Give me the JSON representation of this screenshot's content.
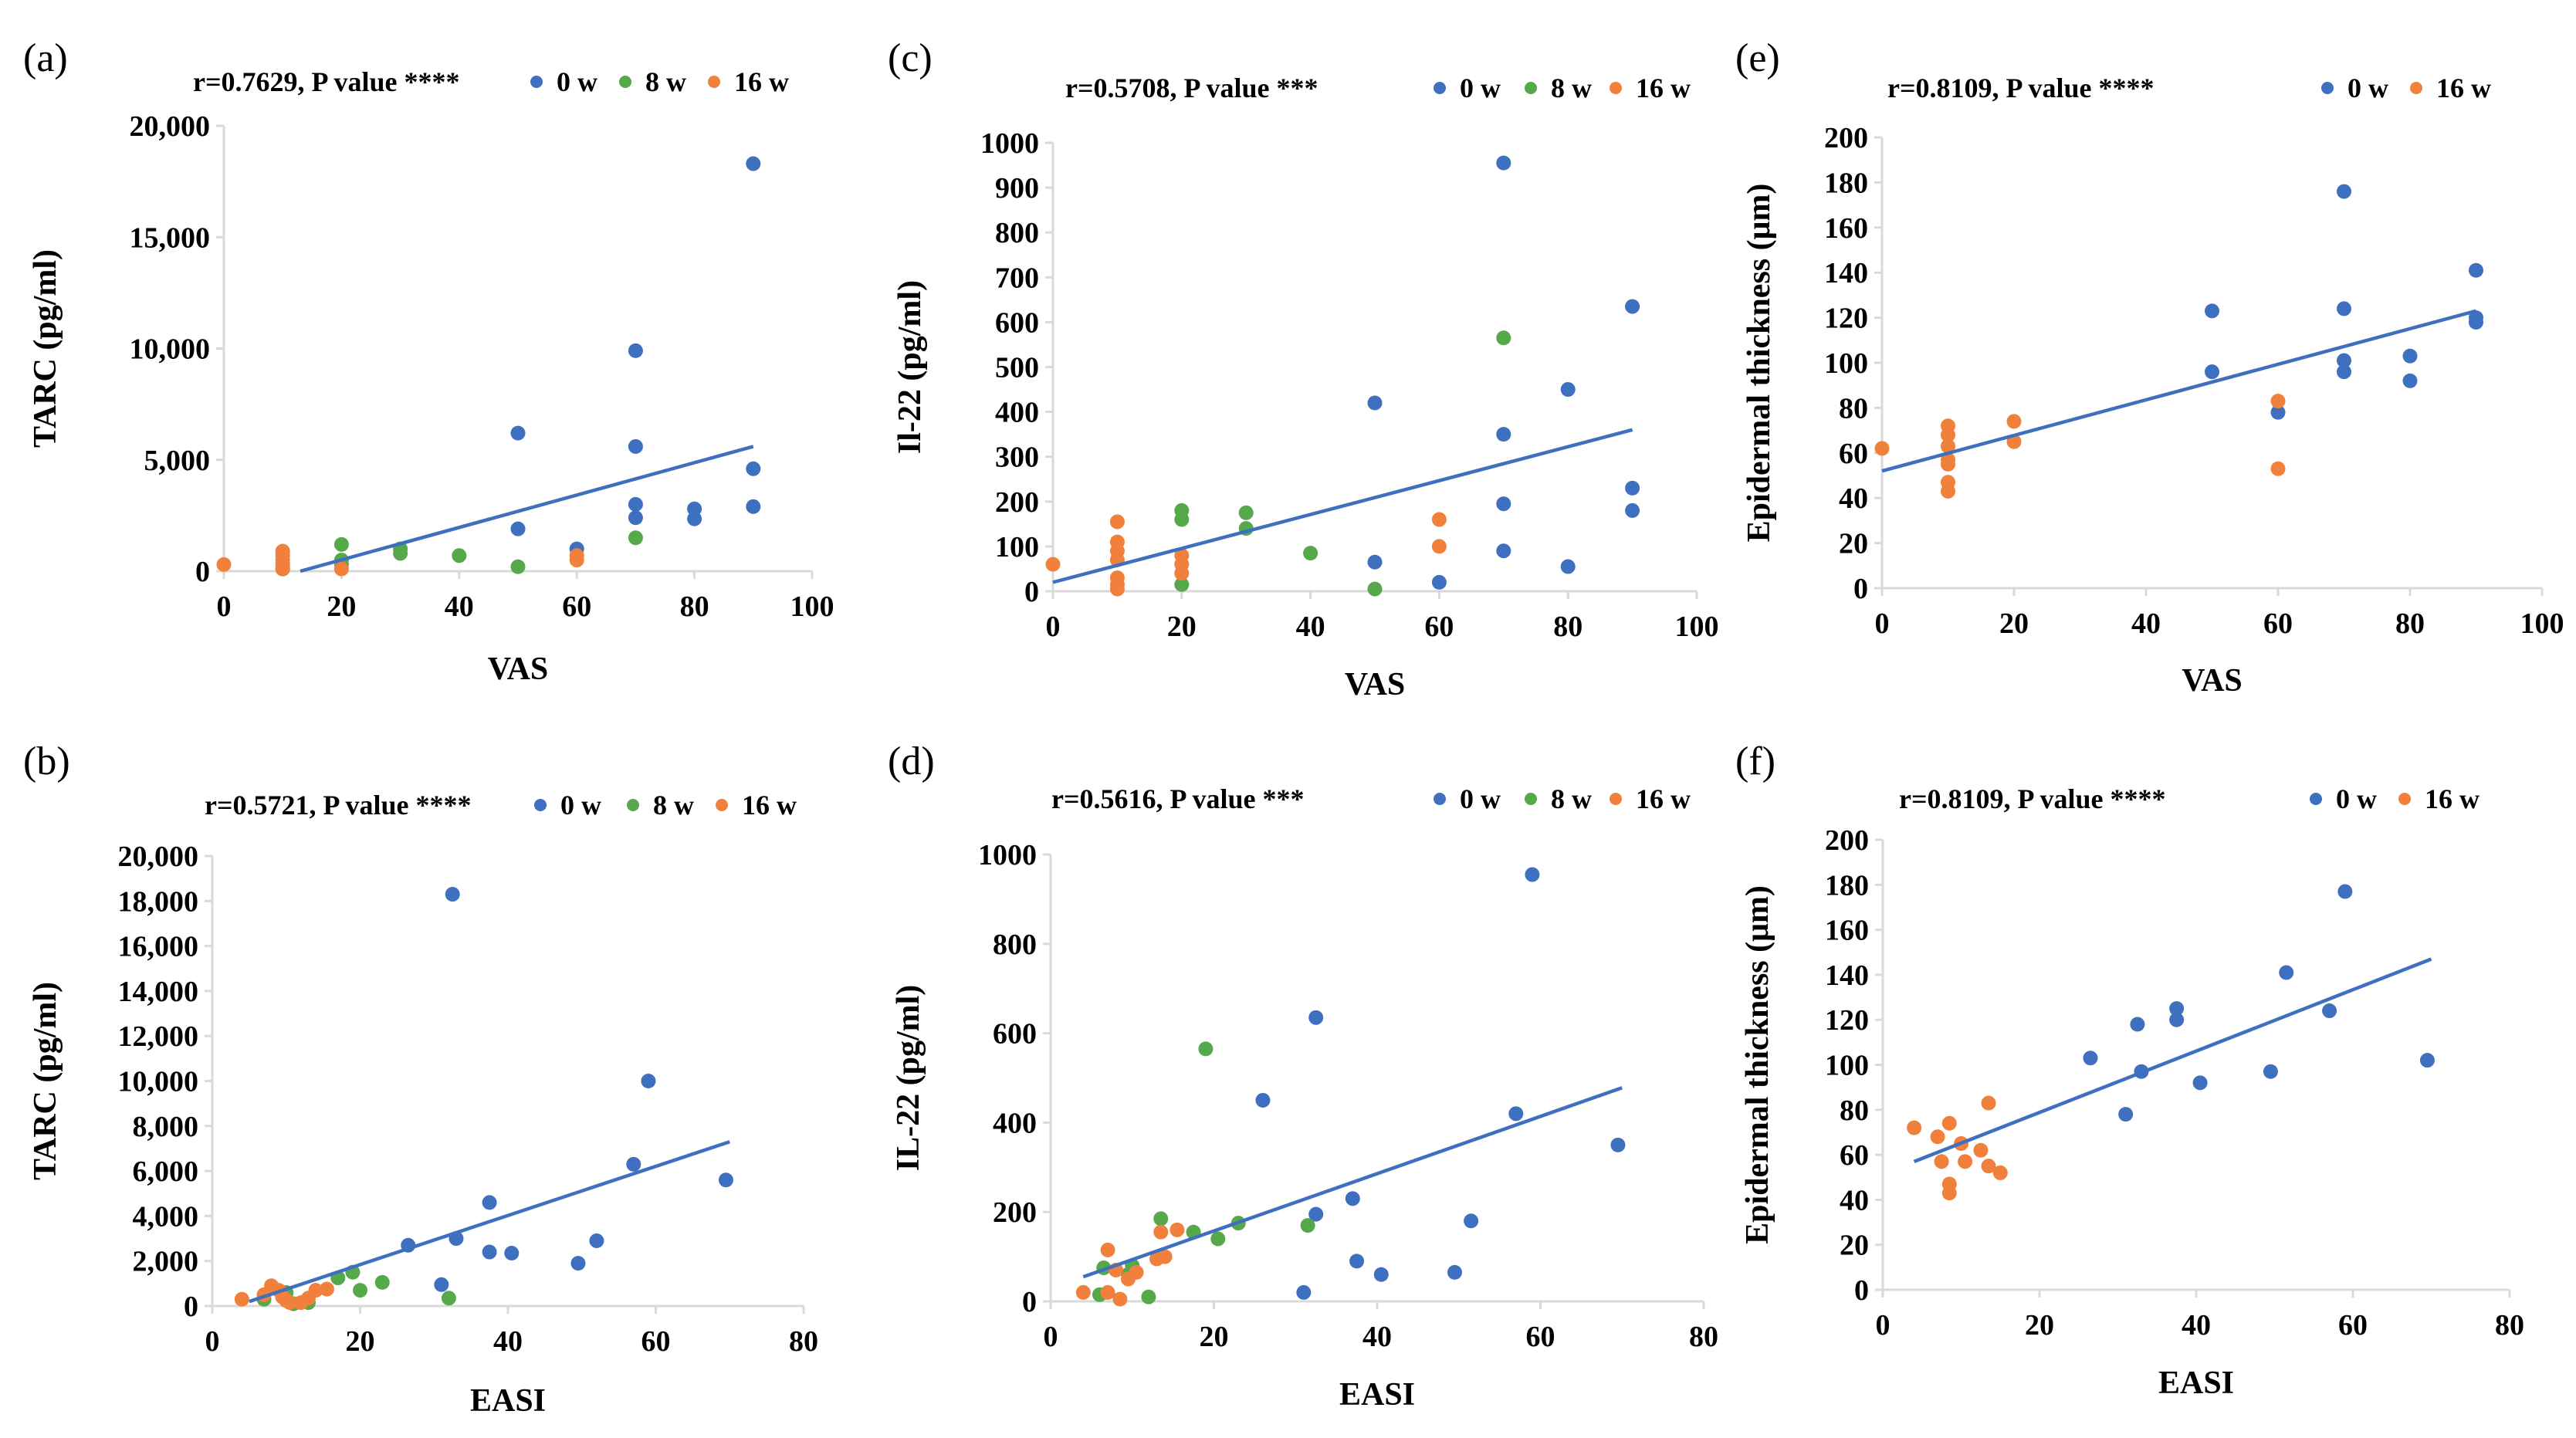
{
  "colors": {
    "0 w": "#3f6fbf",
    "8 w": "#55a94a",
    "16 w": "#f0803c",
    "trendline": "#3f6fbf",
    "axis": "#d9d9d9"
  },
  "chart_data": [
    {
      "id": "a",
      "panel_label": "(a)",
      "type": "scatter",
      "stat_label": "r=0.7629, P value ****",
      "legend": [
        "0 w",
        "8 w",
        "16 w"
      ],
      "xlabel": "VAS",
      "ylabel": "TARC (pg/ml)",
      "xlim": [
        0,
        100
      ],
      "ylim": [
        0,
        20000
      ],
      "xticks": [
        0,
        20,
        40,
        60,
        80,
        100
      ],
      "yticks": [
        0,
        5000,
        10000,
        15000,
        20000
      ],
      "xtick_labels": [
        "0",
        "20",
        "40",
        "60",
        "80",
        "100"
      ],
      "ytick_labels": [
        "0",
        "5,000",
        "10,000",
        "15,000",
        "20,000"
      ],
      "trendline": [
        [
          13,
          0
        ],
        [
          90,
          5600
        ]
      ],
      "series": [
        {
          "name": "0 w",
          "points": [
            [
              90,
              18300
            ],
            [
              70,
              9900
            ],
            [
              50,
              6200
            ],
            [
              70,
              5600
            ],
            [
              90,
              4600
            ],
            [
              70,
              3000
            ],
            [
              90,
              2900
            ],
            [
              80,
              2800
            ],
            [
              70,
              2400
            ],
            [
              80,
              2350
            ],
            [
              50,
              1900
            ],
            [
              60,
              1000
            ]
          ]
        },
        {
          "name": "8 w",
          "points": [
            [
              20,
              1200
            ],
            [
              30,
              1000
            ],
            [
              30,
              800
            ],
            [
              40,
              700
            ],
            [
              20,
              500
            ],
            [
              20,
              300
            ],
            [
              50,
              200
            ],
            [
              70,
              1500
            ],
            [
              10,
              100
            ]
          ]
        },
        {
          "name": "16 w",
          "points": [
            [
              0,
              300
            ],
            [
              10,
              900
            ],
            [
              10,
              700
            ],
            [
              10,
              500
            ],
            [
              10,
              350
            ],
            [
              10,
              200
            ],
            [
              10,
              100
            ],
            [
              60,
              700
            ],
            [
              60,
              500
            ],
            [
              20,
              100
            ]
          ]
        }
      ]
    },
    {
      "id": "c",
      "panel_label": "(c)",
      "type": "scatter",
      "stat_label": "r=0.5708, P value ***",
      "legend": [
        "0 w",
        "8 w",
        "16 w"
      ],
      "xlabel": "VAS",
      "ylabel": "Il-22 (pg/ml)",
      "xlim": [
        0,
        100
      ],
      "ylim": [
        0,
        1000
      ],
      "xticks": [
        0,
        20,
        40,
        60,
        80,
        100
      ],
      "yticks": [
        0,
        100,
        200,
        300,
        400,
        500,
        600,
        700,
        800,
        900,
        1000
      ],
      "xtick_labels": [
        "0",
        "20",
        "40",
        "60",
        "80",
        "100"
      ],
      "ytick_labels": [
        "0",
        "100",
        "200",
        "300",
        "400",
        "500",
        "600",
        "700",
        "800",
        "900",
        "1000"
      ],
      "trendline": [
        [
          0,
          20
        ],
        [
          90,
          360
        ]
      ],
      "series": [
        {
          "name": "0 w",
          "points": [
            [
              70,
              955
            ],
            [
              90,
              635
            ],
            [
              80,
              450
            ],
            [
              50,
              420
            ],
            [
              70,
              350
            ],
            [
              90,
              230
            ],
            [
              70,
              195
            ],
            [
              90,
              180
            ],
            [
              70,
              90
            ],
            [
              50,
              65
            ],
            [
              80,
              55
            ],
            [
              60,
              20
            ]
          ]
        },
        {
          "name": "8 w",
          "points": [
            [
              70,
              565
            ],
            [
              20,
              180
            ],
            [
              30,
              175
            ],
            [
              20,
              160
            ],
            [
              30,
              140
            ],
            [
              40,
              85
            ],
            [
              20,
              15
            ],
            [
              50,
              5
            ]
          ]
        },
        {
          "name": "16 w",
          "points": [
            [
              0,
              60
            ],
            [
              10,
              155
            ],
            [
              10,
              110
            ],
            [
              10,
              90
            ],
            [
              10,
              70
            ],
            [
              10,
              30
            ],
            [
              10,
              15
            ],
            [
              10,
              5
            ],
            [
              20,
              80
            ],
            [
              20,
              60
            ],
            [
              20,
              40
            ],
            [
              60,
              160
            ],
            [
              60,
              100
            ]
          ]
        }
      ]
    },
    {
      "id": "e",
      "panel_label": "(e)",
      "type": "scatter",
      "stat_label": "r=0.8109, P value ****",
      "legend": [
        "0 w",
        "16 w"
      ],
      "xlabel": "VAS",
      "ylabel": "Epidermal thickness (μm)",
      "xlim": [
        0,
        100
      ],
      "ylim": [
        0,
        200
      ],
      "xticks": [
        0,
        20,
        40,
        60,
        80,
        100
      ],
      "yticks": [
        0,
        20,
        40,
        60,
        80,
        100,
        120,
        140,
        160,
        180,
        200
      ],
      "xtick_labels": [
        "0",
        "20",
        "40",
        "60",
        "80",
        "100"
      ],
      "ytick_labels": [
        "0",
        "20",
        "40",
        "60",
        "80",
        "100",
        "120",
        "140",
        "160",
        "180",
        "200"
      ],
      "trendline": [
        [
          0,
          52
        ],
        [
          90,
          123
        ]
      ],
      "series": [
        {
          "name": "0 w",
          "points": [
            [
              70,
              176
            ],
            [
              90,
              141
            ],
            [
              70,
              124
            ],
            [
              50,
              123
            ],
            [
              90,
              120
            ],
            [
              90,
              118
            ],
            [
              80,
              103
            ],
            [
              70,
              101
            ],
            [
              50,
              96
            ],
            [
              70,
              96
            ],
            [
              80,
              92
            ],
            [
              60,
              78
            ]
          ]
        },
        {
          "name": "16 w",
          "points": [
            [
              0,
              62
            ],
            [
              10,
              72
            ],
            [
              10,
              68
            ],
            [
              10,
              63
            ],
            [
              10,
              57
            ],
            [
              10,
              55
            ],
            [
              10,
              47
            ],
            [
              10,
              43
            ],
            [
              20,
              74
            ],
            [
              20,
              65
            ],
            [
              60,
              83
            ],
            [
              60,
              53
            ]
          ]
        }
      ]
    },
    {
      "id": "b",
      "panel_label": "(b)",
      "type": "scatter",
      "stat_label": "r=0.5721, P value ****",
      "legend": [
        "0 w",
        "8 w",
        "16 w"
      ],
      "xlabel": "EASI",
      "ylabel": "TARC (pg/ml)",
      "xlim": [
        0,
        80
      ],
      "ylim": [
        0,
        20000
      ],
      "xticks": [
        0,
        20,
        40,
        60,
        80
      ],
      "yticks": [
        0,
        2000,
        4000,
        6000,
        8000,
        10000,
        12000,
        14000,
        16000,
        18000,
        20000
      ],
      "xtick_labels": [
        "0",
        "20",
        "40",
        "60",
        "80"
      ],
      "ytick_labels": [
        "0",
        "2,000",
        "4,000",
        "6,000",
        "8,000",
        "10,000",
        "12,000",
        "14,000",
        "16,000",
        "18,000",
        "20,000"
      ],
      "trendline": [
        [
          5,
          200
        ],
        [
          70,
          7300
        ]
      ],
      "series": [
        {
          "name": "0 w",
          "points": [
            [
              32.5,
              18300
            ],
            [
              59,
              10000
            ],
            [
              57,
              6300
            ],
            [
              69.5,
              5600
            ],
            [
              37.5,
              4600
            ],
            [
              33,
              3000
            ],
            [
              52,
              2900
            ],
            [
              26.5,
              2700
            ],
            [
              37.5,
              2400
            ],
            [
              40.5,
              2350
            ],
            [
              49.5,
              1900
            ],
            [
              31,
              950
            ]
          ]
        },
        {
          "name": "8 w",
          "points": [
            [
              19,
              1500
            ],
            [
              17,
              1250
            ],
            [
              23,
              1050
            ],
            [
              20,
              700
            ],
            [
              10,
              600
            ],
            [
              7,
              300
            ],
            [
              32,
              350
            ],
            [
              13,
              150
            ],
            [
              11,
              100
            ]
          ]
        },
        {
          "name": "16 w",
          "points": [
            [
              4,
              300
            ],
            [
              8,
              900
            ],
            [
              9,
              700
            ],
            [
              7,
              500
            ],
            [
              9.5,
              400
            ],
            [
              10,
              250
            ],
            [
              10.5,
              150
            ],
            [
              14,
              700
            ],
            [
              15.5,
              750
            ],
            [
              13,
              350
            ],
            [
              12,
              150
            ]
          ]
        }
      ]
    },
    {
      "id": "d",
      "panel_label": "(d)",
      "type": "scatter",
      "stat_label": "r=0.5616, P value ***",
      "legend": [
        "0 w",
        "8 w",
        "16 w"
      ],
      "xlabel": "EASI",
      "ylabel": "IL-22 (pg/ml)",
      "xlim": [
        0,
        80
      ],
      "ylim": [
        0,
        1000
      ],
      "xticks": [
        0,
        20,
        40,
        60,
        80
      ],
      "yticks": [
        0,
        200,
        400,
        600,
        800,
        1000
      ],
      "xtick_labels": [
        "0",
        "20",
        "40",
        "60",
        "80"
      ],
      "ytick_labels": [
        "0",
        "200",
        "400",
        "600",
        "800",
        "1000"
      ],
      "trendline": [
        [
          4,
          55
        ],
        [
          70,
          478
        ]
      ],
      "series": [
        {
          "name": "0 w",
          "points": [
            [
              59,
              955
            ],
            [
              32.5,
              635
            ],
            [
              26,
              450
            ],
            [
              57,
              420
            ],
            [
              69.5,
              350
            ],
            [
              37,
              230
            ],
            [
              32.5,
              195
            ],
            [
              51.5,
              180
            ],
            [
              37.5,
              90
            ],
            [
              49.5,
              65
            ],
            [
              40.5,
              60
            ],
            [
              31,
              20
            ]
          ]
        },
        {
          "name": "8 w",
          "points": [
            [
              19,
              565
            ],
            [
              13.5,
              185
            ],
            [
              23,
              175
            ],
            [
              31.5,
              170
            ],
            [
              17.5,
              155
            ],
            [
              20.5,
              140
            ],
            [
              10,
              80
            ],
            [
              6.5,
              75
            ],
            [
              9.5,
              60
            ],
            [
              6,
              15
            ],
            [
              12,
              10
            ]
          ]
        },
        {
          "name": "16 w",
          "points": [
            [
              4,
              20
            ],
            [
              7,
              115
            ],
            [
              8,
              70
            ],
            [
              10.5,
              65
            ],
            [
              9.5,
              50
            ],
            [
              13,
              95
            ],
            [
              14,
              100
            ],
            [
              13.5,
              155
            ],
            [
              15.5,
              160
            ],
            [
              7,
              20
            ],
            [
              8.5,
              5
            ]
          ]
        }
      ]
    },
    {
      "id": "f",
      "panel_label": "(f)",
      "type": "scatter",
      "stat_label": "r=0.8109, P value ****",
      "legend": [
        "0 w",
        "16 w"
      ],
      "xlabel": "EASI",
      "ylabel": "Epidermal thickness (μm)",
      "xlim": [
        0,
        80
      ],
      "ylim": [
        0,
        200
      ],
      "xticks": [
        0,
        20,
        40,
        60,
        80
      ],
      "yticks": [
        0,
        20,
        40,
        60,
        80,
        100,
        120,
        140,
        160,
        180,
        200
      ],
      "xtick_labels": [
        "0",
        "20",
        "40",
        "60",
        "80"
      ],
      "ytick_labels": [
        "0",
        "20",
        "40",
        "60",
        "80",
        "100",
        "120",
        "140",
        "160",
        "180",
        "200"
      ],
      "trendline": [
        [
          4,
          57
        ],
        [
          70,
          147
        ]
      ],
      "series": [
        {
          "name": "0 w",
          "points": [
            [
              59,
              177
            ],
            [
              51.5,
              141
            ],
            [
              37.5,
              125
            ],
            [
              57,
              124
            ],
            [
              37.5,
              120
            ],
            [
              32.5,
              118
            ],
            [
              26.5,
              103
            ],
            [
              69.5,
              102
            ],
            [
              33,
              97
            ],
            [
              49.5,
              97
            ],
            [
              40.5,
              92
            ],
            [
              31,
              78
            ]
          ]
        },
        {
          "name": "16 w",
          "points": [
            [
              4,
              72
            ],
            [
              7,
              68
            ],
            [
              8.5,
              74
            ],
            [
              10,
              65
            ],
            [
              7.5,
              57
            ],
            [
              8.5,
              47
            ],
            [
              8.5,
              43
            ],
            [
              13.5,
              83
            ],
            [
              12.5,
              62
            ],
            [
              13.5,
              55
            ],
            [
              15,
              52
            ],
            [
              10.5,
              57
            ]
          ]
        }
      ]
    }
  ]
}
